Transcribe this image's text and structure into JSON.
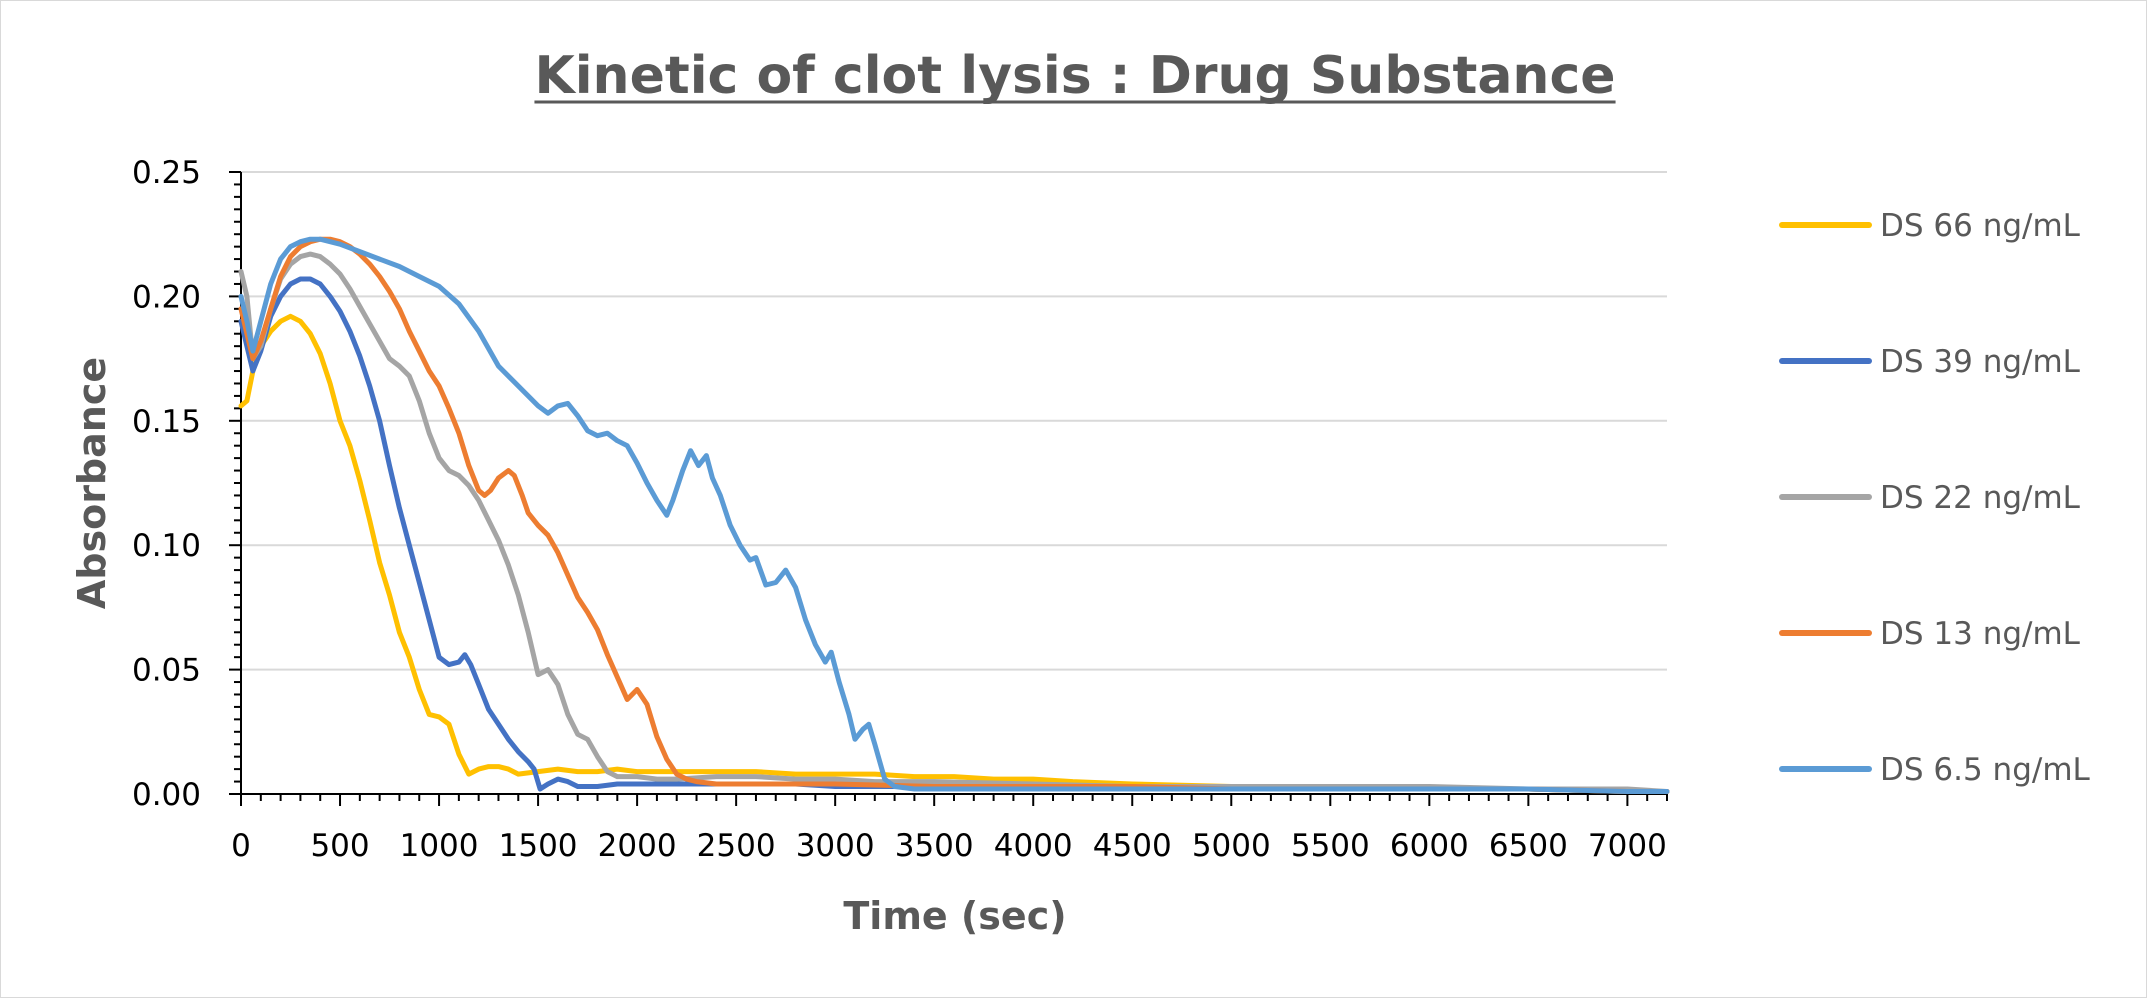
{
  "chart_data": {
    "type": "line",
    "title": "Kinetic of clot lysis : Drug Substance",
    "xlabel": "Time (sec)",
    "ylabel": "Absorbance",
    "xlim": [
      0,
      7200
    ],
    "ylim": [
      0,
      0.25
    ],
    "x_ticks": [
      "0",
      "500",
      "1000",
      "1500",
      "2000",
      "2500",
      "3000",
      "3500",
      "4000",
      "4500",
      "5000",
      "5500",
      "6000",
      "6500",
      "7000"
    ],
    "x_tick_values": [
      0,
      500,
      1000,
      1500,
      2000,
      2500,
      3000,
      3500,
      4000,
      4500,
      5000,
      5500,
      6000,
      6500,
      7000
    ],
    "y_ticks": [
      "0.00",
      "0.05",
      "0.10",
      "0.15",
      "0.20",
      "0.25"
    ],
    "y_tick_values": [
      0,
      0.05,
      0.1,
      0.15,
      0.2,
      0.25
    ],
    "grid": true,
    "legend_position": "right",
    "series": [
      {
        "name": "DS 66 ng/mL",
        "color": "#FFC000",
        "points": [
          [
            0,
            0.156
          ],
          [
            30,
            0.158
          ],
          [
            60,
            0.17
          ],
          [
            100,
            0.18
          ],
          [
            150,
            0.186
          ],
          [
            200,
            0.19
          ],
          [
            250,
            0.192
          ],
          [
            300,
            0.19
          ],
          [
            350,
            0.185
          ],
          [
            400,
            0.177
          ],
          [
            450,
            0.165
          ],
          [
            500,
            0.15
          ],
          [
            550,
            0.14
          ],
          [
            600,
            0.126
          ],
          [
            650,
            0.11
          ],
          [
            700,
            0.093
          ],
          [
            750,
            0.08
          ],
          [
            800,
            0.065
          ],
          [
            850,
            0.055
          ],
          [
            900,
            0.042
          ],
          [
            950,
            0.032
          ],
          [
            1000,
            0.031
          ],
          [
            1050,
            0.028
          ],
          [
            1100,
            0.016
          ],
          [
            1150,
            0.008
          ],
          [
            1200,
            0.01
          ],
          [
            1250,
            0.011
          ],
          [
            1300,
            0.011
          ],
          [
            1350,
            0.01
          ],
          [
            1400,
            0.008
          ],
          [
            1500,
            0.009
          ],
          [
            1600,
            0.01
          ],
          [
            1700,
            0.009
          ],
          [
            1800,
            0.009
          ],
          [
            1900,
            0.01
          ],
          [
            2000,
            0.009
          ],
          [
            2200,
            0.009
          ],
          [
            2400,
            0.009
          ],
          [
            2600,
            0.009
          ],
          [
            2800,
            0.008
          ],
          [
            3000,
            0.008
          ],
          [
            3200,
            0.008
          ],
          [
            3400,
            0.007
          ],
          [
            3600,
            0.007
          ],
          [
            3800,
            0.006
          ],
          [
            4000,
            0.006
          ],
          [
            4200,
            0.005
          ],
          [
            4500,
            0.004
          ],
          [
            5000,
            0.003
          ],
          [
            5500,
            0.002
          ],
          [
            6000,
            0.002
          ],
          [
            6500,
            0.002
          ],
          [
            7000,
            0.001
          ],
          [
            7200,
            0.001
          ]
        ]
      },
      {
        "name": "DS 39 ng/mL",
        "color": "#4472C4",
        "points": [
          [
            0,
            0.19
          ],
          [
            30,
            0.18
          ],
          [
            60,
            0.17
          ],
          [
            100,
            0.178
          ],
          [
            150,
            0.192
          ],
          [
            200,
            0.2
          ],
          [
            250,
            0.205
          ],
          [
            300,
            0.207
          ],
          [
            350,
            0.207
          ],
          [
            400,
            0.205
          ],
          [
            450,
            0.2
          ],
          [
            500,
            0.194
          ],
          [
            550,
            0.186
          ],
          [
            600,
            0.176
          ],
          [
            650,
            0.164
          ],
          [
            700,
            0.15
          ],
          [
            750,
            0.132
          ],
          [
            800,
            0.115
          ],
          [
            850,
            0.1
          ],
          [
            900,
            0.085
          ],
          [
            950,
            0.07
          ],
          [
            1000,
            0.055
          ],
          [
            1050,
            0.052
          ],
          [
            1100,
            0.053
          ],
          [
            1130,
            0.056
          ],
          [
            1160,
            0.052
          ],
          [
            1200,
            0.044
          ],
          [
            1250,
            0.034
          ],
          [
            1300,
            0.028
          ],
          [
            1350,
            0.022
          ],
          [
            1400,
            0.017
          ],
          [
            1450,
            0.013
          ],
          [
            1480,
            0.01
          ],
          [
            1510,
            0.002
          ],
          [
            1550,
            0.004
          ],
          [
            1600,
            0.006
          ],
          [
            1650,
            0.005
          ],
          [
            1700,
            0.003
          ],
          [
            1800,
            0.003
          ],
          [
            1900,
            0.004
          ],
          [
            2000,
            0.004
          ],
          [
            2200,
            0.004
          ],
          [
            2400,
            0.004
          ],
          [
            2600,
            0.004
          ],
          [
            2800,
            0.004
          ],
          [
            3000,
            0.003
          ],
          [
            3500,
            0.003
          ],
          [
            4000,
            0.003
          ],
          [
            4500,
            0.002
          ],
          [
            5000,
            0.002
          ],
          [
            5500,
            0.002
          ],
          [
            6000,
            0.002
          ],
          [
            6500,
            0.002
          ],
          [
            7000,
            0.001
          ],
          [
            7200,
            0.001
          ]
        ]
      },
      {
        "name": "DS 22 ng/mL",
        "color": "#A5A5A5",
        "points": [
          [
            0,
            0.21
          ],
          [
            30,
            0.2
          ],
          [
            60,
            0.175
          ],
          [
            100,
            0.18
          ],
          [
            150,
            0.195
          ],
          [
            200,
            0.207
          ],
          [
            250,
            0.213
          ],
          [
            300,
            0.216
          ],
          [
            350,
            0.217
          ],
          [
            400,
            0.216
          ],
          [
            450,
            0.213
          ],
          [
            500,
            0.209
          ],
          [
            550,
            0.203
          ],
          [
            600,
            0.196
          ],
          [
            650,
            0.189
          ],
          [
            700,
            0.182
          ],
          [
            750,
            0.175
          ],
          [
            800,
            0.172
          ],
          [
            850,
            0.168
          ],
          [
            900,
            0.158
          ],
          [
            950,
            0.145
          ],
          [
            1000,
            0.135
          ],
          [
            1050,
            0.13
          ],
          [
            1100,
            0.128
          ],
          [
            1150,
            0.124
          ],
          [
            1200,
            0.118
          ],
          [
            1250,
            0.11
          ],
          [
            1300,
            0.102
          ],
          [
            1350,
            0.092
          ],
          [
            1400,
            0.08
          ],
          [
            1450,
            0.065
          ],
          [
            1500,
            0.048
          ],
          [
            1550,
            0.05
          ],
          [
            1600,
            0.044
          ],
          [
            1650,
            0.032
          ],
          [
            1700,
            0.024
          ],
          [
            1750,
            0.022
          ],
          [
            1800,
            0.015
          ],
          [
            1850,
            0.009
          ],
          [
            1900,
            0.007
          ],
          [
            2000,
            0.007
          ],
          [
            2100,
            0.006
          ],
          [
            2200,
            0.006
          ],
          [
            2400,
            0.007
          ],
          [
            2600,
            0.007
          ],
          [
            2800,
            0.006
          ],
          [
            3000,
            0.006
          ],
          [
            3200,
            0.005
          ],
          [
            3500,
            0.005
          ],
          [
            4000,
            0.004
          ],
          [
            4500,
            0.003
          ],
          [
            5000,
            0.003
          ],
          [
            5500,
            0.003
          ],
          [
            6000,
            0.003
          ],
          [
            6500,
            0.002
          ],
          [
            7000,
            0.002
          ],
          [
            7200,
            0.001
          ]
        ]
      },
      {
        "name": "DS 13 ng/mL",
        "color": "#ED7D31",
        "points": [
          [
            0,
            0.195
          ],
          [
            30,
            0.185
          ],
          [
            60,
            0.175
          ],
          [
            100,
            0.182
          ],
          [
            150,
            0.195
          ],
          [
            200,
            0.208
          ],
          [
            250,
            0.216
          ],
          [
            300,
            0.22
          ],
          [
            350,
            0.222
          ],
          [
            400,
            0.223
          ],
          [
            450,
            0.223
          ],
          [
            500,
            0.222
          ],
          [
            550,
            0.22
          ],
          [
            600,
            0.217
          ],
          [
            650,
            0.213
          ],
          [
            700,
            0.208
          ],
          [
            750,
            0.202
          ],
          [
            800,
            0.195
          ],
          [
            850,
            0.186
          ],
          [
            900,
            0.178
          ],
          [
            950,
            0.17
          ],
          [
            1000,
            0.164
          ],
          [
            1050,
            0.155
          ],
          [
            1100,
            0.145
          ],
          [
            1150,
            0.132
          ],
          [
            1200,
            0.122
          ],
          [
            1230,
            0.12
          ],
          [
            1260,
            0.122
          ],
          [
            1300,
            0.127
          ],
          [
            1350,
            0.13
          ],
          [
            1380,
            0.128
          ],
          [
            1420,
            0.12
          ],
          [
            1450,
            0.113
          ],
          [
            1500,
            0.108
          ],
          [
            1550,
            0.104
          ],
          [
            1600,
            0.097
          ],
          [
            1650,
            0.088
          ],
          [
            1700,
            0.079
          ],
          [
            1750,
            0.073
          ],
          [
            1800,
            0.066
          ],
          [
            1850,
            0.056
          ],
          [
            1900,
            0.047
          ],
          [
            1950,
            0.038
          ],
          [
            2000,
            0.042
          ],
          [
            2050,
            0.036
          ],
          [
            2100,
            0.023
          ],
          [
            2150,
            0.014
          ],
          [
            2200,
            0.008
          ],
          [
            2250,
            0.006
          ],
          [
            2300,
            0.005
          ],
          [
            2400,
            0.004
          ],
          [
            2600,
            0.004
          ],
          [
            2800,
            0.004
          ],
          [
            3000,
            0.004
          ],
          [
            3500,
            0.003
          ],
          [
            4000,
            0.003
          ],
          [
            4500,
            0.003
          ],
          [
            5000,
            0.002
          ],
          [
            5500,
            0.002
          ],
          [
            6000,
            0.002
          ],
          [
            6500,
            0.002
          ],
          [
            7000,
            0.001
          ],
          [
            7200,
            0.001
          ]
        ]
      },
      {
        "name": "DS 6.5 ng/mL",
        "color": "#5B9BD5",
        "points": [
          [
            0,
            0.2
          ],
          [
            30,
            0.19
          ],
          [
            60,
            0.178
          ],
          [
            100,
            0.19
          ],
          [
            150,
            0.205
          ],
          [
            200,
            0.215
          ],
          [
            250,
            0.22
          ],
          [
            300,
            0.222
          ],
          [
            350,
            0.223
          ],
          [
            400,
            0.223
          ],
          [
            450,
            0.222
          ],
          [
            500,
            0.221
          ],
          [
            600,
            0.218
          ],
          [
            700,
            0.215
          ],
          [
            800,
            0.212
          ],
          [
            900,
            0.208
          ],
          [
            1000,
            0.204
          ],
          [
            1100,
            0.197
          ],
          [
            1200,
            0.186
          ],
          [
            1300,
            0.172
          ],
          [
            1400,
            0.164
          ],
          [
            1500,
            0.156
          ],
          [
            1550,
            0.153
          ],
          [
            1600,
            0.156
          ],
          [
            1650,
            0.157
          ],
          [
            1700,
            0.152
          ],
          [
            1750,
            0.146
          ],
          [
            1800,
            0.144
          ],
          [
            1850,
            0.145
          ],
          [
            1900,
            0.142
          ],
          [
            1950,
            0.14
          ],
          [
            2000,
            0.133
          ],
          [
            2050,
            0.125
          ],
          [
            2100,
            0.118
          ],
          [
            2150,
            0.112
          ],
          [
            2180,
            0.118
          ],
          [
            2230,
            0.13
          ],
          [
            2270,
            0.138
          ],
          [
            2310,
            0.132
          ],
          [
            2350,
            0.136
          ],
          [
            2380,
            0.127
          ],
          [
            2420,
            0.12
          ],
          [
            2470,
            0.108
          ],
          [
            2520,
            0.1
          ],
          [
            2570,
            0.094
          ],
          [
            2600,
            0.095
          ],
          [
            2650,
            0.084
          ],
          [
            2700,
            0.085
          ],
          [
            2750,
            0.09
          ],
          [
            2800,
            0.083
          ],
          [
            2850,
            0.07
          ],
          [
            2900,
            0.06
          ],
          [
            2950,
            0.053
          ],
          [
            2980,
            0.057
          ],
          [
            3020,
            0.045
          ],
          [
            3070,
            0.032
          ],
          [
            3100,
            0.022
          ],
          [
            3140,
            0.026
          ],
          [
            3170,
            0.028
          ],
          [
            3200,
            0.02
          ],
          [
            3250,
            0.006
          ],
          [
            3300,
            0.003
          ],
          [
            3400,
            0.002
          ],
          [
            3600,
            0.002
          ],
          [
            3800,
            0.002
          ],
          [
            4000,
            0.002
          ],
          [
            4500,
            0.002
          ],
          [
            5000,
            0.002
          ],
          [
            5500,
            0.002
          ],
          [
            6000,
            0.002
          ],
          [
            6500,
            0.002
          ],
          [
            7000,
            0.001
          ],
          [
            7200,
            0.001
          ]
        ]
      }
    ]
  }
}
